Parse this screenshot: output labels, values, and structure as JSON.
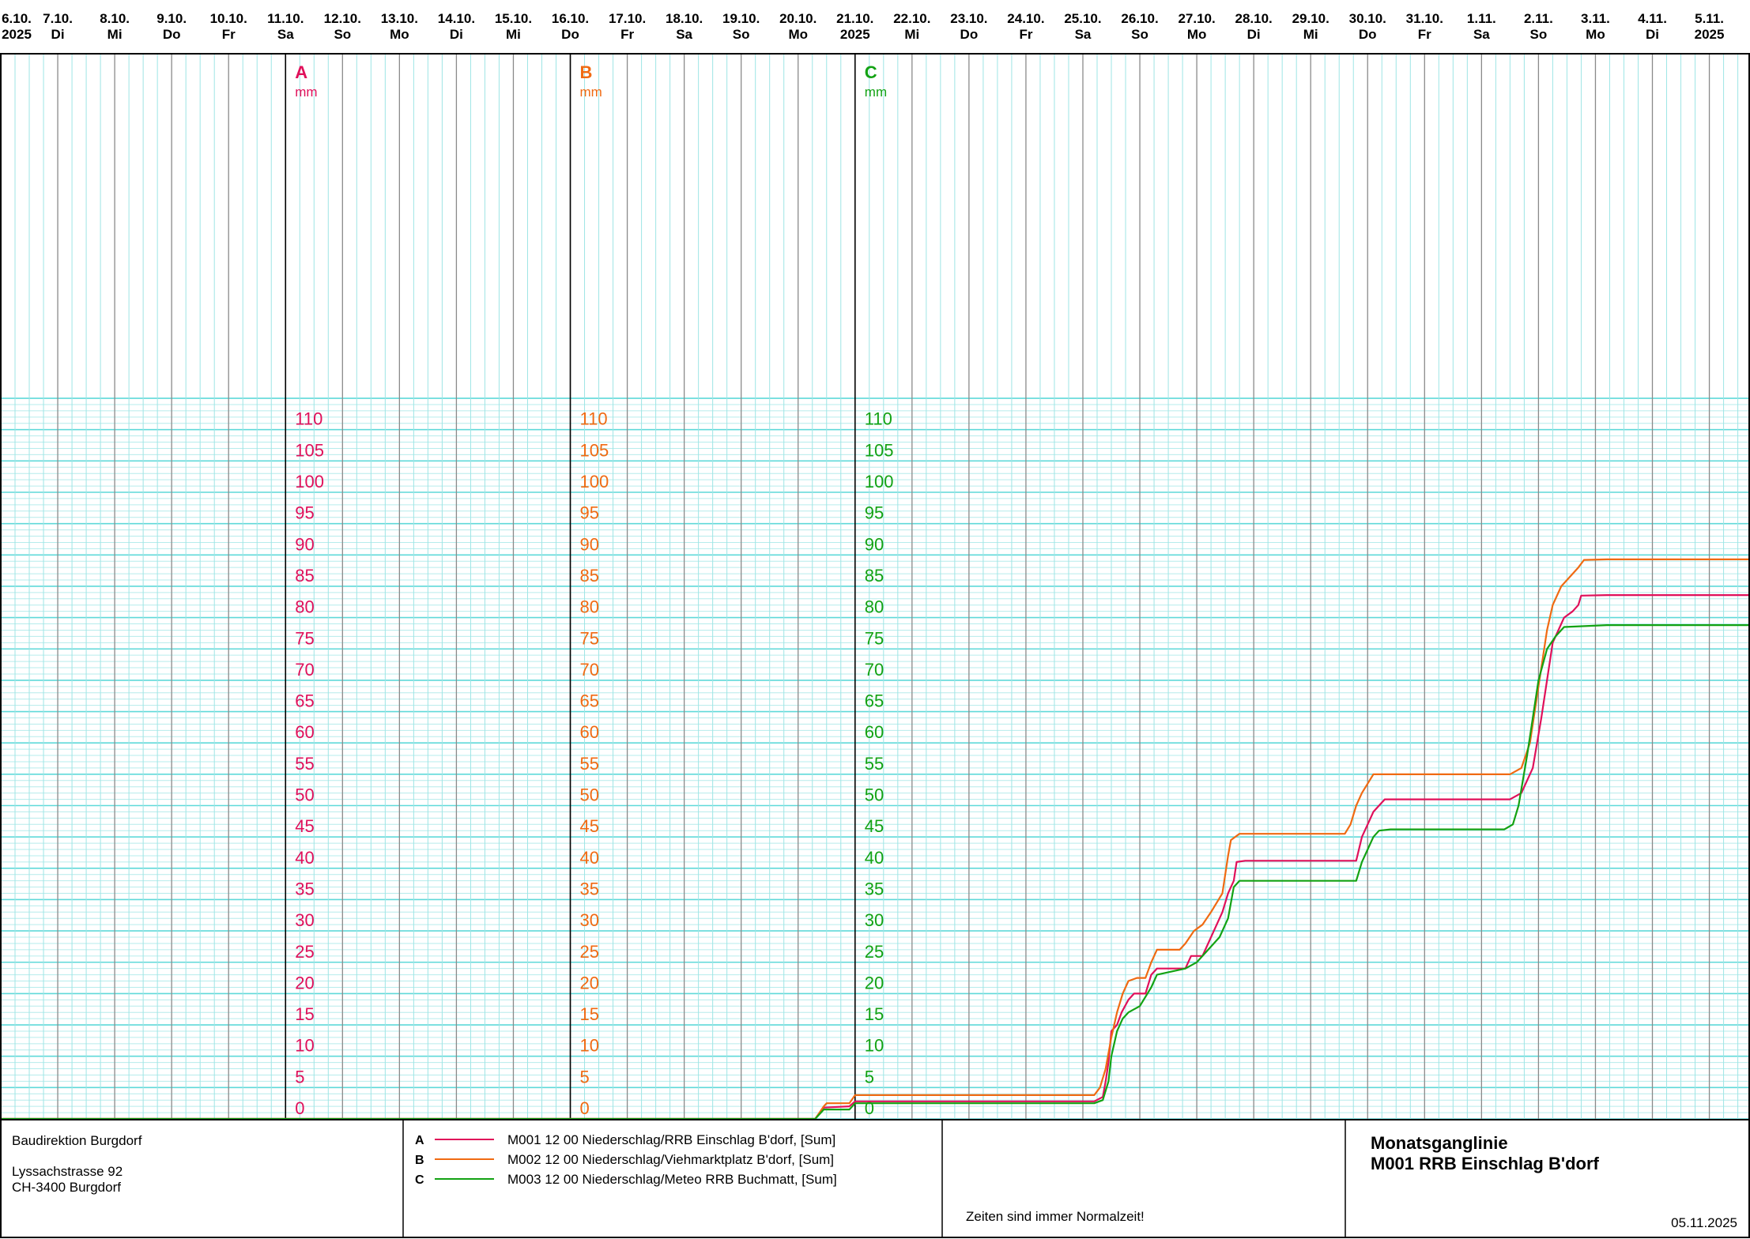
{
  "chart_data": {
    "type": "line",
    "title": "Monatsganglinie",
    "subtitle": "M001 RRB Einschlag B'dorf",
    "x_days": [
      {
        "date": "6.10.",
        "label": "2025"
      },
      {
        "date": "7.10.",
        "label": "Di"
      },
      {
        "date": "8.10.",
        "label": "Mi"
      },
      {
        "date": "9.10.",
        "label": "Do"
      },
      {
        "date": "10.10.",
        "label": "Fr"
      },
      {
        "date": "11.10.",
        "label": "Sa"
      },
      {
        "date": "12.10.",
        "label": "So"
      },
      {
        "date": "13.10.",
        "label": "Mo"
      },
      {
        "date": "14.10.",
        "label": "Di"
      },
      {
        "date": "15.10.",
        "label": "Mi"
      },
      {
        "date": "16.10.",
        "label": "Do"
      },
      {
        "date": "17.10.",
        "label": "Fr"
      },
      {
        "date": "18.10.",
        "label": "Sa"
      },
      {
        "date": "19.10.",
        "label": "So"
      },
      {
        "date": "20.10.",
        "label": "Mo"
      },
      {
        "date": "21.10.",
        "label": "2025"
      },
      {
        "date": "22.10.",
        "label": "Mi"
      },
      {
        "date": "23.10.",
        "label": "Do"
      },
      {
        "date": "24.10.",
        "label": "Fr"
      },
      {
        "date": "25.10.",
        "label": "Sa"
      },
      {
        "date": "26.10.",
        "label": "So"
      },
      {
        "date": "27.10.",
        "label": "Mo"
      },
      {
        "date": "28.10.",
        "label": "Di"
      },
      {
        "date": "29.10.",
        "label": "Mi"
      },
      {
        "date": "30.10.",
        "label": "Do"
      },
      {
        "date": "31.10.",
        "label": "Fr"
      },
      {
        "date": "1.11.",
        "label": "Sa"
      },
      {
        "date": "2.11.",
        "label": "So"
      },
      {
        "date": "3.11.",
        "label": "Mo"
      },
      {
        "date": "4.11.",
        "label": "Di"
      },
      {
        "date": "5.11.",
        "label": "2025"
      }
    ],
    "ylim": [
      0,
      115
    ],
    "y_ticks": [
      0,
      5,
      10,
      15,
      20,
      25,
      30,
      35,
      40,
      45,
      50,
      55,
      60,
      65,
      70,
      75,
      80,
      85,
      90,
      95,
      100,
      105,
      110
    ],
    "grid": true,
    "axes": [
      {
        "letter": "A",
        "unit": "mm",
        "color": "#e0105a"
      },
      {
        "letter": "B",
        "unit": "mm",
        "color": "#f06a12"
      },
      {
        "letter": "C",
        "unit": "mm",
        "color": "#13a213"
      }
    ],
    "series": [
      {
        "letter": "A",
        "name": "M001 12 00  Niederschlag/RRB Einschlag B'dorf, [Sum]",
        "color": "#e0105a",
        "x_unit": "days since 6.10.2025 00:00",
        "points": [
          [
            0,
            0
          ],
          [
            14.3,
            0
          ],
          [
            14.45,
            1.8
          ],
          [
            14.9,
            2
          ],
          [
            15.0,
            2.8
          ],
          [
            19.2,
            2.8
          ],
          [
            19.35,
            3.5
          ],
          [
            19.4,
            6
          ],
          [
            19.45,
            9
          ],
          [
            19.5,
            14
          ],
          [
            19.6,
            15
          ],
          [
            19.68,
            17
          ],
          [
            19.8,
            19
          ],
          [
            19.9,
            20
          ],
          [
            20.1,
            20
          ],
          [
            20.2,
            23
          ],
          [
            20.3,
            24
          ],
          [
            20.8,
            24
          ],
          [
            20.9,
            26
          ],
          [
            21.1,
            26
          ],
          [
            21.2,
            28
          ],
          [
            21.3,
            30
          ],
          [
            21.45,
            33
          ],
          [
            21.55,
            36
          ],
          [
            21.65,
            38
          ],
          [
            21.7,
            41
          ],
          [
            21.85,
            41.2
          ],
          [
            23.8,
            41.2
          ],
          [
            23.9,
            45
          ],
          [
            24.0,
            47
          ],
          [
            24.1,
            49
          ],
          [
            24.2,
            50
          ],
          [
            24.3,
            51
          ],
          [
            25.0,
            51
          ],
          [
            26.5,
            51
          ],
          [
            26.7,
            52
          ],
          [
            26.9,
            56
          ],
          [
            27.05,
            64
          ],
          [
            27.15,
            70
          ],
          [
            27.25,
            76
          ],
          [
            27.35,
            78
          ],
          [
            27.45,
            80
          ],
          [
            27.6,
            81
          ],
          [
            27.7,
            82
          ],
          [
            27.75,
            83.5
          ],
          [
            28.2,
            83.6
          ],
          [
            30.7,
            83.6
          ]
        ]
      },
      {
        "letter": "B",
        "name": "M002 12 00  Niederschlag/Viehmarktplatz B'dorf, [Sum]",
        "color": "#f06a12",
        "x_unit": "days since 6.10.2025 00:00",
        "points": [
          [
            0,
            0
          ],
          [
            14.3,
            0
          ],
          [
            14.45,
            2
          ],
          [
            14.5,
            2.5
          ],
          [
            14.9,
            2.5
          ],
          [
            15.0,
            3.8
          ],
          [
            19.2,
            3.8
          ],
          [
            19.3,
            5
          ],
          [
            19.4,
            8
          ],
          [
            19.5,
            13
          ],
          [
            19.6,
            17
          ],
          [
            19.7,
            20
          ],
          [
            19.8,
            22
          ],
          [
            19.95,
            22.5
          ],
          [
            20.1,
            22.5
          ],
          [
            20.2,
            25
          ],
          [
            20.3,
            27
          ],
          [
            20.7,
            27
          ],
          [
            20.8,
            28
          ],
          [
            20.95,
            30
          ],
          [
            21.1,
            31
          ],
          [
            21.25,
            33
          ],
          [
            21.35,
            34.5
          ],
          [
            21.45,
            36
          ],
          [
            21.55,
            42
          ],
          [
            21.6,
            44.5
          ],
          [
            21.75,
            45.5
          ],
          [
            23.6,
            45.5
          ],
          [
            23.7,
            47
          ],
          [
            23.8,
            50
          ],
          [
            23.9,
            52
          ],
          [
            24.0,
            53.5
          ],
          [
            24.1,
            55
          ],
          [
            24.3,
            55
          ],
          [
            26.5,
            55
          ],
          [
            26.7,
            56
          ],
          [
            26.85,
            60
          ],
          [
            26.95,
            66
          ],
          [
            27.05,
            72
          ],
          [
            27.15,
            78
          ],
          [
            27.25,
            82
          ],
          [
            27.4,
            85
          ],
          [
            27.55,
            86.5
          ],
          [
            27.7,
            88
          ],
          [
            27.8,
            89.2
          ],
          [
            28.2,
            89.3
          ],
          [
            30.7,
            89.3
          ]
        ]
      },
      {
        "letter": "C",
        "name": "M003 12 00  Niederschlag/Meteo RRB Buchmatt, [Sum]",
        "color": "#13a213",
        "x_unit": "days since 6.10.2025 00:00",
        "points": [
          [
            0,
            0
          ],
          [
            14.3,
            0
          ],
          [
            14.45,
            1.5
          ],
          [
            14.9,
            1.5
          ],
          [
            15.0,
            2.5
          ],
          [
            19.2,
            2.5
          ],
          [
            19.35,
            3
          ],
          [
            19.45,
            6
          ],
          [
            19.5,
            10
          ],
          [
            19.6,
            14
          ],
          [
            19.7,
            16
          ],
          [
            19.8,
            17
          ],
          [
            20.0,
            18
          ],
          [
            20.2,
            21
          ],
          [
            20.3,
            23
          ],
          [
            20.8,
            24
          ],
          [
            21.0,
            25
          ],
          [
            21.2,
            27
          ],
          [
            21.4,
            29
          ],
          [
            21.55,
            32
          ],
          [
            21.65,
            37
          ],
          [
            21.75,
            38
          ],
          [
            23.8,
            38
          ],
          [
            23.9,
            41
          ],
          [
            24.0,
            43
          ],
          [
            24.1,
            45
          ],
          [
            24.2,
            46
          ],
          [
            24.4,
            46.2
          ],
          [
            26.4,
            46.2
          ],
          [
            26.55,
            47
          ],
          [
            26.65,
            50
          ],
          [
            26.8,
            58
          ],
          [
            26.9,
            64
          ],
          [
            27.0,
            70
          ],
          [
            27.15,
            75
          ],
          [
            27.3,
            77
          ],
          [
            27.45,
            78.5
          ],
          [
            28.2,
            78.8
          ],
          [
            30.7,
            78.8
          ]
        ]
      }
    ]
  },
  "footer": {
    "org_name": "Baudirektion Burgdorf",
    "street": "Lyssachstrasse 92",
    "city": "CH-3400 Burgdorf",
    "note": "Zeiten sind immer Normalzeit!",
    "date": "05.11.2025"
  }
}
